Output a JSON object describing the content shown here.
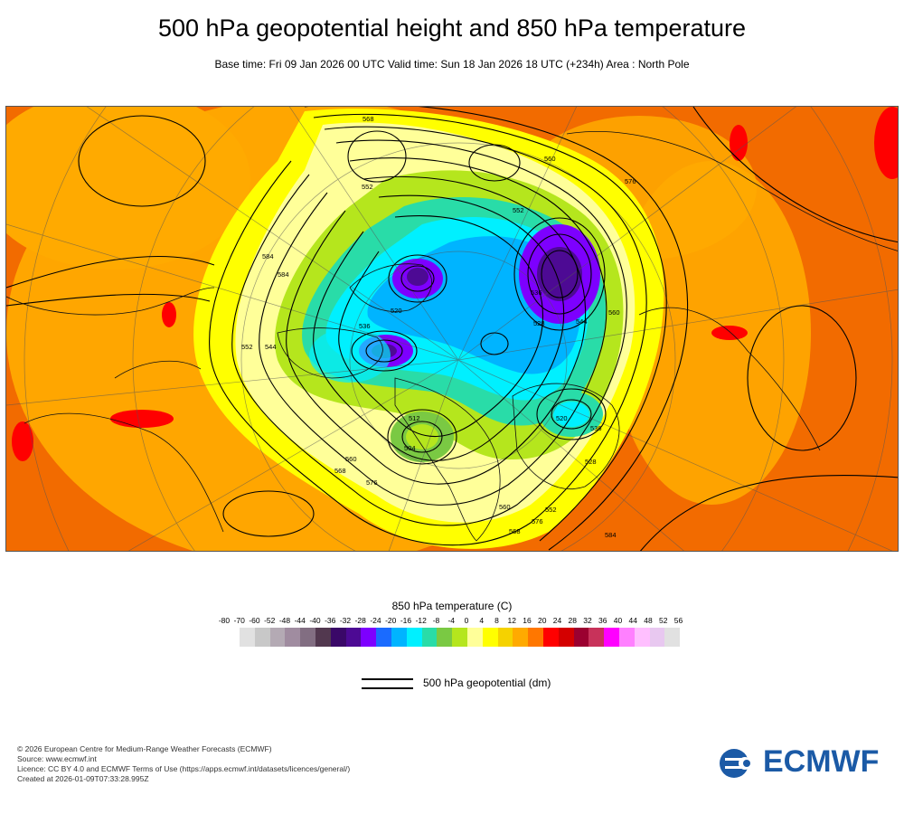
{
  "title": "500 hPa geopotential height and 850 hPa temperature",
  "subtitle": "Base time: Fri 09 Jan 2026 00 UTC Valid time: Sun 18 Jan 2026 18 UTC (+234h) Area : North Pole",
  "map": {
    "contour_labels": [
      "568",
      "552",
      "584",
      "560",
      "576",
      "552",
      "536",
      "544",
      "528",
      "520",
      "512",
      "504",
      "536",
      "544",
      "552",
      "560",
      "568",
      "576",
      "584",
      "528",
      "520",
      "536",
      "560",
      "560",
      "552",
      "568",
      "576",
      "584"
    ]
  },
  "colorbar": {
    "title": "850 hPa temperature (C)",
    "ticks": [
      "-80",
      "-70",
      "-60",
      "-52",
      "-48",
      "-44",
      "-40",
      "-36",
      "-32",
      "-28",
      "-24",
      "-20",
      "-16",
      "-12",
      "-8",
      "-4",
      "0",
      "4",
      "8",
      "12",
      "16",
      "20",
      "24",
      "28",
      "32",
      "36",
      "40",
      "44",
      "48",
      "52",
      "56"
    ],
    "colors": [
      "#e1e1e1",
      "#c8c8c8",
      "#b4aab4",
      "#a08ca0",
      "#826e82",
      "#52384f",
      "#3a0868",
      "#4d0a94",
      "#7d00ff",
      "#1a6bff",
      "#00b4ff",
      "#00f0ff",
      "#29dca8",
      "#7ac943",
      "#b5e61d",
      "#ffff99",
      "#ffff00",
      "#f5d200",
      "#ffaa00",
      "#ff7700",
      "#ff0000",
      "#d40000",
      "#9b0030",
      "#c8325a",
      "#ff00ff",
      "#ff80ff",
      "#ffbfff",
      "#e8c8f0",
      "#e1e1e1"
    ]
  },
  "legend": {
    "geopotential_label": "500 hPa geopotential (dm)"
  },
  "footer": {
    "copyright": "© 2026 European Centre for Medium-Range Weather Forecasts (ECMWF)",
    "source": "Source: www.ecmwf.int",
    "licence": "Licence: CC BY 4.0 and ECMWF Terms of Use (https://apps.ecmwf.int/datasets/licences/general/)",
    "created": "Created at 2026-01-09T07:33:28.995Z"
  },
  "logo": {
    "text": "ECMWF",
    "color": "#1b5aa6"
  }
}
